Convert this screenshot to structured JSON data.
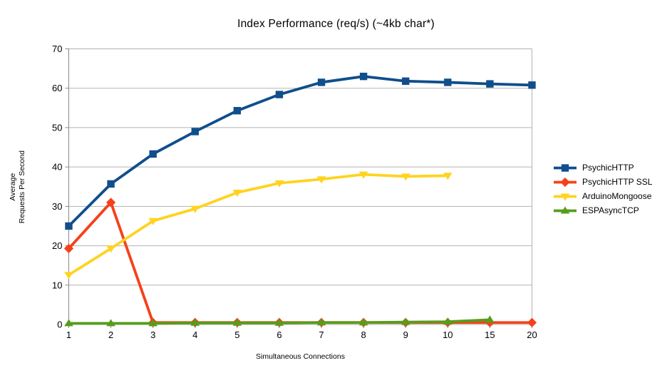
{
  "chart": {
    "title": "Index Performance (req/s) (~4kb char*)",
    "x_axis_title": "Simultaneous Connections",
    "y_axis_title": "Average Requests Per Second"
  },
  "chart_data": {
    "type": "line",
    "title": "Index Performance (req/s) (~4kb char*)",
    "xlabel": "Simultaneous Connections",
    "ylabel": "Average Requests Per Second",
    "ylabel_lines": [
      "Average",
      "Requests Per Second"
    ],
    "categories": [
      "1",
      "2",
      "3",
      "4",
      "5",
      "6",
      "7",
      "8",
      "9",
      "10",
      "15",
      "20"
    ],
    "yticks": [
      0,
      10,
      20,
      30,
      40,
      50,
      60,
      70
    ],
    "ylim": [
      0,
      70
    ],
    "grid": true,
    "legend_position": "right",
    "colors": {
      "gridline": "#b3b3b3",
      "axis": "#888888",
      "text": "#000000",
      "background": "#ffffff"
    },
    "series": [
      {
        "name": "PsychicHTTP",
        "color": "#104E8C",
        "marker": "square",
        "values": [
          25.0,
          35.7,
          43.3,
          49.0,
          54.3,
          58.4,
          61.5,
          63.0,
          61.8,
          61.5,
          61.1,
          60.8
        ]
      },
      {
        "name": "PsychicHTTP SSL",
        "color": "#F5411A",
        "marker": "diamond",
        "values": [
          19.3,
          31.0,
          0.5,
          0.5,
          0.5,
          0.5,
          0.5,
          0.5,
          0.5,
          0.5,
          0.5,
          0.5
        ]
      },
      {
        "name": "ArduinoMongoose",
        "color": "#FFD320",
        "marker": "triangle-down",
        "values": [
          12.6,
          19.3,
          26.3,
          29.4,
          33.5,
          35.9,
          36.9,
          38.1,
          37.6,
          37.8
        ]
      },
      {
        "name": "ESPAsyncTCP",
        "color": "#579D1C",
        "marker": "triangle-up",
        "values": [
          0.3,
          0.3,
          0.3,
          0.4,
          0.4,
          0.4,
          0.5,
          0.5,
          0.6,
          0.7,
          1.2
        ]
      }
    ]
  }
}
